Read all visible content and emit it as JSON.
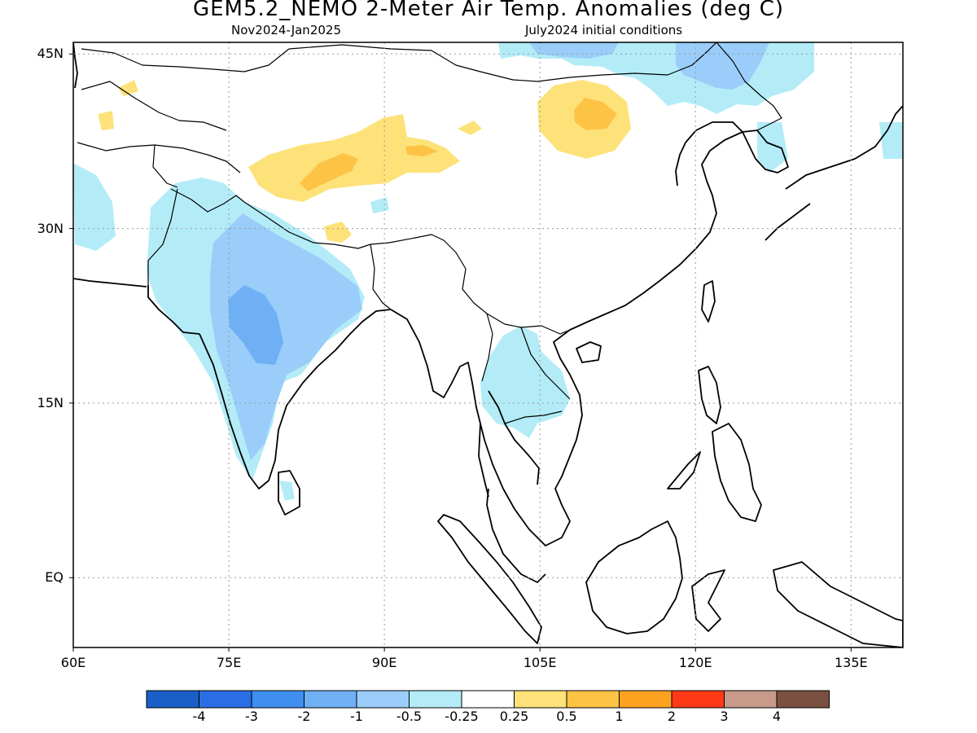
{
  "header": {
    "title": "GEM5.2_NEMO 2-Meter Air Temp. Anomalies (deg C)",
    "period": "Nov2024-Jan2025",
    "initial": "July2024 initial conditions"
  },
  "map": {
    "extent": {
      "lon_min": 60,
      "lon_max": 140,
      "lat_min": -6,
      "lat_max": 46
    },
    "lat_labels": [
      {
        "value": 45,
        "text": "45N"
      },
      {
        "value": 30,
        "text": "30N"
      },
      {
        "value": 15,
        "text": "15N"
      },
      {
        "value": 0,
        "text": "EQ"
      }
    ],
    "lon_labels": [
      {
        "value": 60,
        "text": "60E"
      },
      {
        "value": 75,
        "text": "75E"
      },
      {
        "value": 90,
        "text": "90E"
      },
      {
        "value": 105,
        "text": "105E"
      },
      {
        "value": 120,
        "text": "120E"
      },
      {
        "value": 135,
        "text": "135E"
      }
    ],
    "gridlines": "dotted"
  },
  "colorbar": {
    "colors": [
      "#1a5fc8",
      "#2a6ee6",
      "#3f8ef0",
      "#6fb0f5",
      "#9acdf9",
      "#b3ecf7",
      "#ffffff",
      "#fde27a",
      "#fdc345",
      "#fda220",
      "#fe3a17",
      "#c99a8a",
      "#7a5040"
    ],
    "labels": [
      "-4",
      "-3",
      "-2",
      "-1",
      "-0.5",
      "-0.25",
      "0.25",
      "0.5",
      "1",
      "2",
      "3",
      "4"
    ]
  },
  "anomaly_colors": {
    "light_cyan": "#b3ecf7",
    "light_blue": "#9acdf9",
    "medium_blue": "#6fb0f5",
    "light_yellow": "#fde27a",
    "orange": "#fdc345"
  }
}
